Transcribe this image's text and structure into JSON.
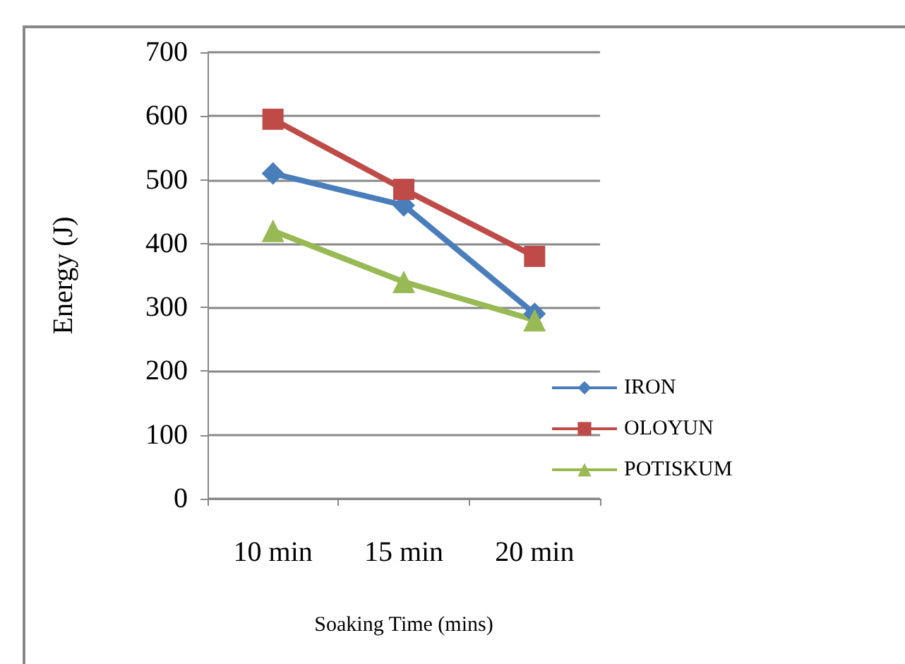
{
  "chart_data": {
    "type": "line",
    "xlabel": "Soaking Time (mins)",
    "ylabel": "Energy (J)",
    "categories": [
      "10 min",
      "15 min",
      "20 min"
    ],
    "series": [
      {
        "name": "IRON",
        "color": "#4a7ebb",
        "marker": "diamond",
        "values": [
          510,
          460,
          290
        ]
      },
      {
        "name": "OLOYUN",
        "color": "#be4b48",
        "marker": "square",
        "values": [
          595,
          485,
          380
        ]
      },
      {
        "name": "POTISKUM",
        "color": "#98b954",
        "marker": "triangle",
        "values": [
          420,
          340,
          280
        ]
      }
    ],
    "ylim": [
      0,
      700
    ],
    "yticks": [
      0,
      100,
      200,
      300,
      400,
      500,
      600,
      700
    ],
    "grid": "y",
    "legend": "right"
  }
}
